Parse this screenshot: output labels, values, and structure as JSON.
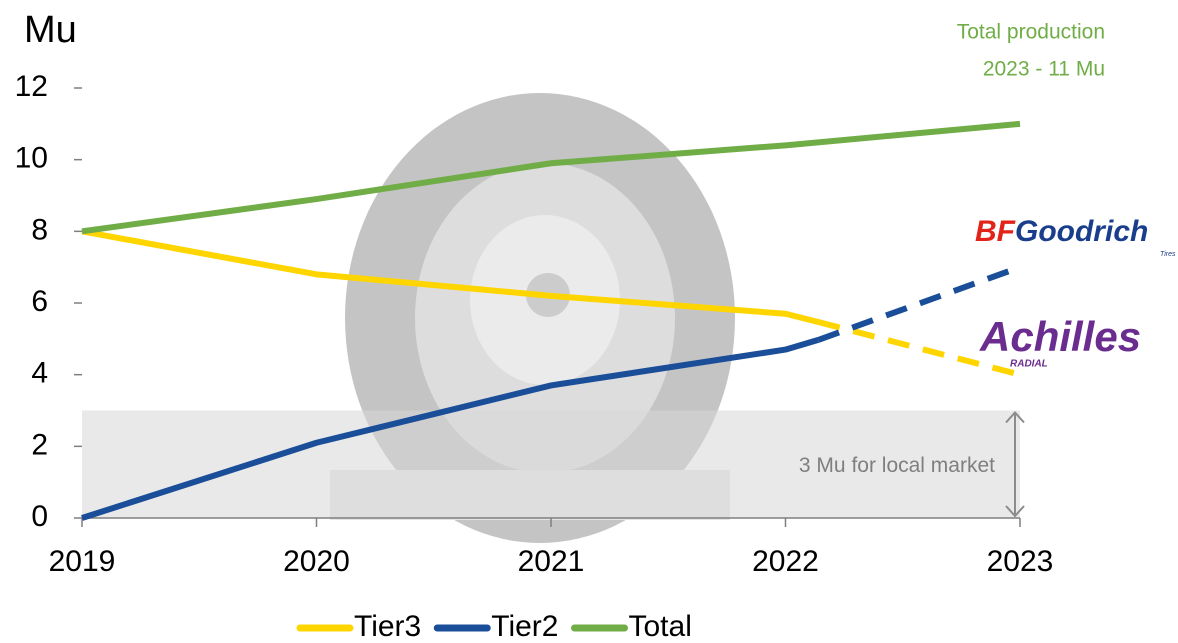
{
  "chart_data": {
    "type": "line",
    "y_label": "Mu",
    "annotation": [
      "Total production",
      "2023 - 11 Mu"
    ],
    "local_market": {
      "label": "3 Mu for local market",
      "value": 3
    },
    "logos": {
      "bfgoodrich": [
        "BF",
        "Goodrich"
      ],
      "bfgoodrich_sub": "Tires",
      "achilles": "Achilles",
      "achilles_sub": "RADIAL"
    },
    "xlim": [
      2019,
      2023
    ],
    "xticks": [
      2019,
      2020,
      2021,
      2022,
      2023
    ],
    "ylim": [
      0,
      12
    ],
    "yticks": [
      0,
      2,
      4,
      6,
      8,
      10,
      12
    ],
    "series": [
      {
        "name": "Tier3",
        "color": "#FFD500",
        "x": [
          2019,
          2020,
          2021,
          2022,
          2022.14,
          2023
        ],
        "values": [
          8.0,
          6.8,
          6.2,
          5.7,
          5.47,
          4.0
        ],
        "dash_start": 4
      },
      {
        "name": "Tier2",
        "color": "#1A4E98",
        "x": [
          2019,
          2020,
          2021,
          2022,
          2022.14,
          2023
        ],
        "values": [
          0,
          2.1,
          3.7,
          4.7,
          4.97,
          7.0
        ],
        "dash_start": 4
      },
      {
        "name": "Total",
        "color": "#70AD47",
        "x": [
          2019,
          2020,
          2021,
          2022,
          2023
        ],
        "values": [
          8.0,
          8.9,
          9.9,
          10.4,
          11.0
        ]
      }
    ]
  }
}
